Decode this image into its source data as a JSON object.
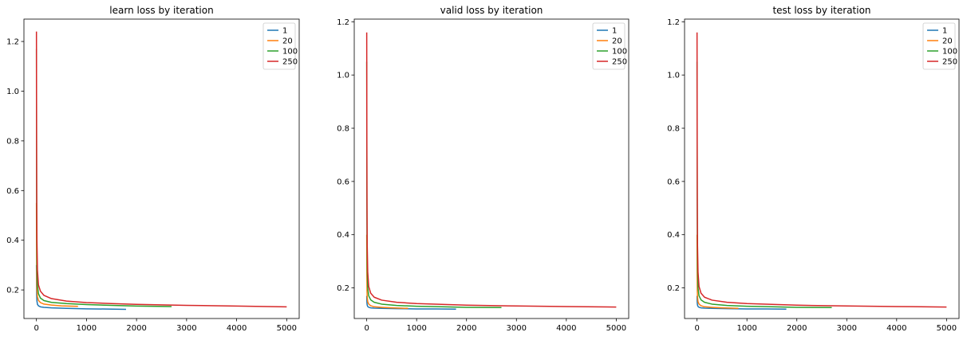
{
  "chart_data": [
    {
      "type": "line",
      "title": "learn loss by iteration",
      "xlabel": "",
      "ylabel": "",
      "xlim": [
        -250,
        5250
      ],
      "ylim": [
        0.085,
        1.29
      ],
      "xticks": [
        0,
        1000,
        2000,
        3000,
        4000,
        5000
      ],
      "yticks": [
        0.2,
        0.4,
        0.6,
        0.8,
        1.0,
        1.2
      ],
      "ytick_labels": [
        "0.2",
        "0.4",
        "0.6",
        "0.8",
        "1.0",
        "1.2"
      ],
      "legend_position": "top-right",
      "series": [
        {
          "name": "1",
          "color": "#1f77b4",
          "x": [
            0,
            3,
            6,
            10,
            20,
            40,
            80,
            150,
            300,
            600,
            1000,
            1400,
            1790
          ],
          "y": [
            0.3,
            0.2,
            0.17,
            0.155,
            0.142,
            0.136,
            0.132,
            0.13,
            0.128,
            0.126,
            0.124,
            0.123,
            0.122
          ]
        },
        {
          "name": "20",
          "color": "#ff7f0e",
          "x": [
            0,
            3,
            6,
            10,
            20,
            40,
            80,
            150,
            300,
            500,
            830
          ],
          "y": [
            0.55,
            0.33,
            0.24,
            0.2,
            0.172,
            0.158,
            0.149,
            0.143,
            0.139,
            0.136,
            0.134
          ]
        },
        {
          "name": "100",
          "color": "#2ca02c",
          "x": [
            0,
            3,
            6,
            10,
            20,
            40,
            80,
            150,
            300,
            600,
            1000,
            1500,
            2000,
            2700
          ],
          "y": [
            1.17,
            0.6,
            0.4,
            0.3,
            0.22,
            0.185,
            0.167,
            0.157,
            0.15,
            0.145,
            0.141,
            0.138,
            0.135,
            0.133
          ]
        },
        {
          "name": "250",
          "color": "#d62728",
          "x": [
            0,
            3,
            6,
            10,
            20,
            40,
            80,
            150,
            300,
            600,
            1000,
            1500,
            2000,
            3000,
            4000,
            5000
          ],
          "y": [
            1.24,
            0.8,
            0.55,
            0.4,
            0.28,
            0.22,
            0.195,
            0.178,
            0.165,
            0.155,
            0.149,
            0.145,
            0.142,
            0.138,
            0.135,
            0.132
          ]
        }
      ]
    },
    {
      "type": "line",
      "title": "valid loss by iteration",
      "xlabel": "",
      "ylabel": "",
      "xlim": [
        -250,
        5250
      ],
      "ylim": [
        0.085,
        1.21
      ],
      "xticks": [
        0,
        1000,
        2000,
        3000,
        4000,
        5000
      ],
      "yticks": [
        0.2,
        0.4,
        0.6,
        0.8,
        1.0,
        1.2
      ],
      "ytick_labels": [
        "0.2",
        "0.4",
        "0.6",
        "0.8",
        "1.0",
        "1.2"
      ],
      "legend_position": "top-right",
      "series": [
        {
          "name": "1",
          "color": "#1f77b4",
          "x": [
            0,
            3,
            6,
            10,
            20,
            40,
            80,
            150,
            300,
            600,
            1000,
            1400,
            1790
          ],
          "y": [
            0.17,
            0.15,
            0.14,
            0.135,
            0.13,
            0.127,
            0.125,
            0.124,
            0.123,
            0.122,
            0.121,
            0.121,
            0.12
          ]
        },
        {
          "name": "20",
          "color": "#ff7f0e",
          "x": [
            0,
            3,
            6,
            10,
            20,
            40,
            80,
            150,
            300,
            500,
            830
          ],
          "y": [
            0.4,
            0.25,
            0.19,
            0.165,
            0.148,
            0.139,
            0.133,
            0.129,
            0.127,
            0.125,
            0.123
          ]
        },
        {
          "name": "100",
          "color": "#2ca02c",
          "x": [
            0,
            3,
            6,
            10,
            20,
            40,
            80,
            150,
            300,
            600,
            1000,
            1500,
            2000,
            2700
          ],
          "y": [
            1.05,
            0.55,
            0.36,
            0.27,
            0.2,
            0.17,
            0.155,
            0.146,
            0.139,
            0.134,
            0.131,
            0.129,
            0.127,
            0.126
          ]
        },
        {
          "name": "250",
          "color": "#d62728",
          "x": [
            0,
            3,
            6,
            10,
            20,
            40,
            80,
            150,
            300,
            600,
            1000,
            1500,
            2000,
            3000,
            4000,
            5000
          ],
          "y": [
            1.16,
            0.75,
            0.5,
            0.36,
            0.26,
            0.205,
            0.18,
            0.165,
            0.154,
            0.146,
            0.141,
            0.138,
            0.135,
            0.132,
            0.13,
            0.128
          ]
        }
      ]
    },
    {
      "type": "line",
      "title": "test loss by iteration",
      "xlabel": "",
      "ylabel": "",
      "xlim": [
        -250,
        5250
      ],
      "ylim": [
        0.085,
        1.21
      ],
      "xticks": [
        0,
        1000,
        2000,
        3000,
        4000,
        5000
      ],
      "yticks": [
        0.2,
        0.4,
        0.6,
        0.8,
        1.0,
        1.2
      ],
      "ytick_labels": [
        "0.2",
        "0.4",
        "0.6",
        "0.8",
        "1.0",
        "1.2"
      ],
      "legend_position": "top-right",
      "series": [
        {
          "name": "1",
          "color": "#1f77b4",
          "x": [
            0,
            3,
            6,
            10,
            20,
            40,
            80,
            150,
            300,
            600,
            1000,
            1400,
            1790
          ],
          "y": [
            0.17,
            0.15,
            0.14,
            0.135,
            0.13,
            0.127,
            0.125,
            0.124,
            0.123,
            0.122,
            0.121,
            0.121,
            0.12
          ]
        },
        {
          "name": "20",
          "color": "#ff7f0e",
          "x": [
            0,
            3,
            6,
            10,
            20,
            40,
            80,
            150,
            300,
            500,
            830
          ],
          "y": [
            0.4,
            0.25,
            0.19,
            0.165,
            0.148,
            0.139,
            0.133,
            0.129,
            0.127,
            0.125,
            0.123
          ]
        },
        {
          "name": "100",
          "color": "#2ca02c",
          "x": [
            0,
            3,
            6,
            10,
            20,
            40,
            80,
            150,
            300,
            600,
            1000,
            1500,
            2000,
            2700
          ],
          "y": [
            1.05,
            0.55,
            0.36,
            0.27,
            0.2,
            0.17,
            0.155,
            0.146,
            0.139,
            0.134,
            0.131,
            0.129,
            0.127,
            0.126
          ]
        },
        {
          "name": "250",
          "color": "#d62728",
          "x": [
            0,
            3,
            6,
            10,
            20,
            40,
            80,
            150,
            300,
            600,
            1000,
            1500,
            2000,
            3000,
            4000,
            5000
          ],
          "y": [
            1.16,
            0.75,
            0.5,
            0.36,
            0.26,
            0.205,
            0.18,
            0.165,
            0.154,
            0.146,
            0.141,
            0.138,
            0.135,
            0.132,
            0.13,
            0.128
          ]
        }
      ]
    }
  ]
}
